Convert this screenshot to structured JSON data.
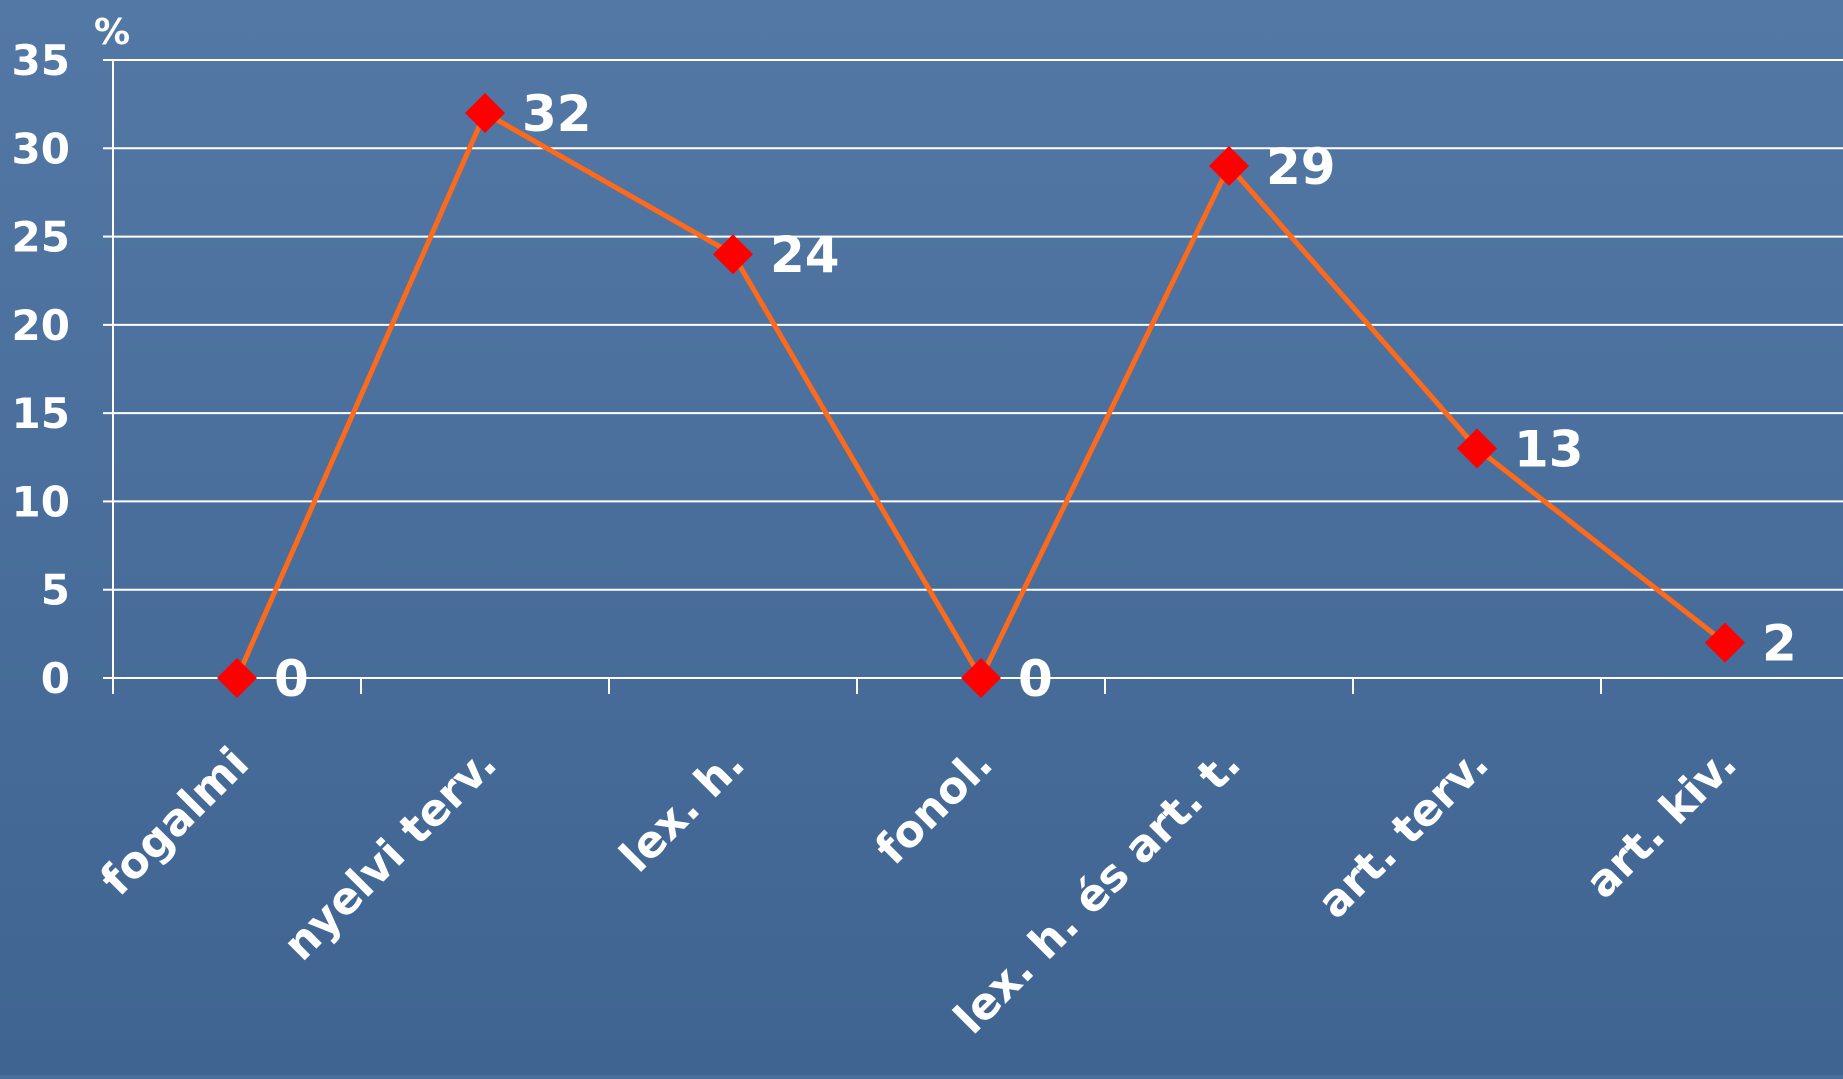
{
  "chart_data": {
    "type": "line",
    "ylabel": "%",
    "categories": [
      "fogalmi",
      "nyelvi terv.",
      "lex. h.",
      "fonol.",
      "lex. h. és art. t.",
      "art. terv.",
      "art. kiv."
    ],
    "series": [
      {
        "values": [
          0,
          32,
          24,
          0,
          29,
          13,
          2
        ]
      }
    ],
    "data_labels": [
      "0",
      "32",
      "24",
      "0",
      "29",
      "13",
      "2"
    ],
    "ylim": [
      0,
      35
    ],
    "yticks": [
      0,
      5,
      10,
      15,
      20,
      25,
      30,
      35
    ],
    "grid": true,
    "legend": "none",
    "colors": {
      "background": "#4a6f9c",
      "line": "#ff6a1a",
      "marker": "#ff0000",
      "grid": "#ffffff",
      "text": "#ffffff"
    },
    "marker": "diamond"
  }
}
